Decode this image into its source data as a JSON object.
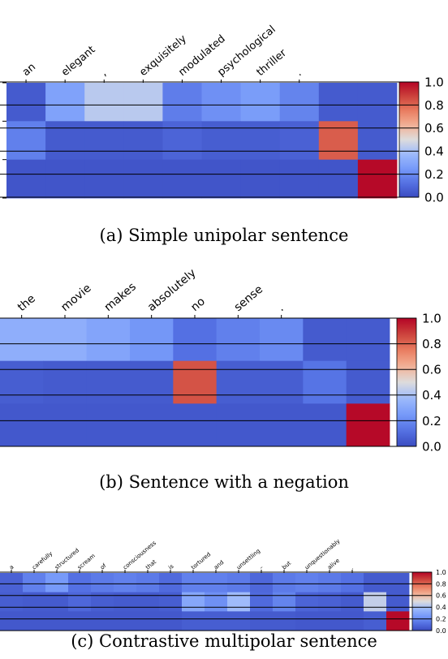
{
  "chart_data": [
    {
      "type": "heatmap",
      "caption": "(a) Simple unipolar sentence",
      "tokens": [
        "an",
        "elegant",
        ",",
        "exquisitely",
        "modulated",
        "psychological",
        "thriller",
        "."
      ],
      "values": [
        [
          0.05,
          0.28,
          0.43,
          0.43,
          0.16,
          0.22,
          0.26,
          0.18,
          0.05,
          0.05
        ],
        [
          0.17,
          0.05,
          0.05,
          0.05,
          0.08,
          0.06,
          0.06,
          0.07,
          0.82,
          0.05
        ],
        [
          0.03,
          0.03,
          0.03,
          0.03,
          0.03,
          0.03,
          0.03,
          0.03,
          0.03,
          0.99
        ]
      ],
      "colorbar": {
        "ticks": [
          "0.0",
          "0.2",
          "0.4",
          "0.6",
          "0.8",
          "1.0"
        ],
        "min": 0,
        "max": 1
      },
      "colormap": "coolwarm"
    },
    {
      "type": "heatmap",
      "caption": "(b) Sentence with a negation",
      "tokens": [
        "the",
        "movie",
        "makes",
        "absolutely",
        "no",
        "sense",
        "."
      ],
      "values": [
        [
          0.33,
          0.33,
          0.29,
          0.24,
          0.12,
          0.17,
          0.2,
          0.05,
          0.05
        ],
        [
          0.06,
          0.05,
          0.05,
          0.05,
          0.84,
          0.06,
          0.06,
          0.13,
          0.05
        ],
        [
          0.04,
          0.04,
          0.04,
          0.04,
          0.04,
          0.04,
          0.04,
          0.04,
          0.99
        ]
      ],
      "colorbar": {
        "ticks": [
          "0.0",
          "0.2",
          "0.4",
          "0.6",
          "0.8",
          "1.0"
        ],
        "min": 0,
        "max": 1
      },
      "colormap": "coolwarm"
    },
    {
      "type": "heatmap",
      "caption": "(c) Contrastive multipolar sentence",
      "tokens": [
        "a",
        "carefully",
        "structured",
        "scream",
        "of",
        "consciousness",
        "that",
        "is",
        "tortured",
        "and",
        "unsettling",
        "–",
        "but",
        "unquestionably",
        "alive",
        "."
      ],
      "values": [
        [
          0.07,
          0.17,
          0.25,
          0.12,
          0.15,
          0.17,
          0.15,
          0.1,
          0.17,
          0.17,
          0.15,
          0.09,
          0.15,
          0.17,
          0.15,
          0.12,
          0.05,
          0.05
        ],
        [
          0.06,
          0.05,
          0.05,
          0.09,
          0.06,
          0.05,
          0.05,
          0.06,
          0.3,
          0.22,
          0.38,
          0.1,
          0.18,
          0.08,
          0.07,
          0.05,
          0.45,
          0.05
        ],
        [
          0.04,
          0.04,
          0.04,
          0.04,
          0.04,
          0.04,
          0.04,
          0.04,
          0.06,
          0.06,
          0.06,
          0.05,
          0.05,
          0.04,
          0.04,
          0.04,
          0.06,
          0.99
        ]
      ],
      "colorbar": {
        "ticks": [
          "0.0",
          "0.2",
          "0.4",
          "0.6",
          "0.8",
          "1.0"
        ],
        "min": 0,
        "max": 1
      },
      "colormap": "coolwarm"
    }
  ]
}
